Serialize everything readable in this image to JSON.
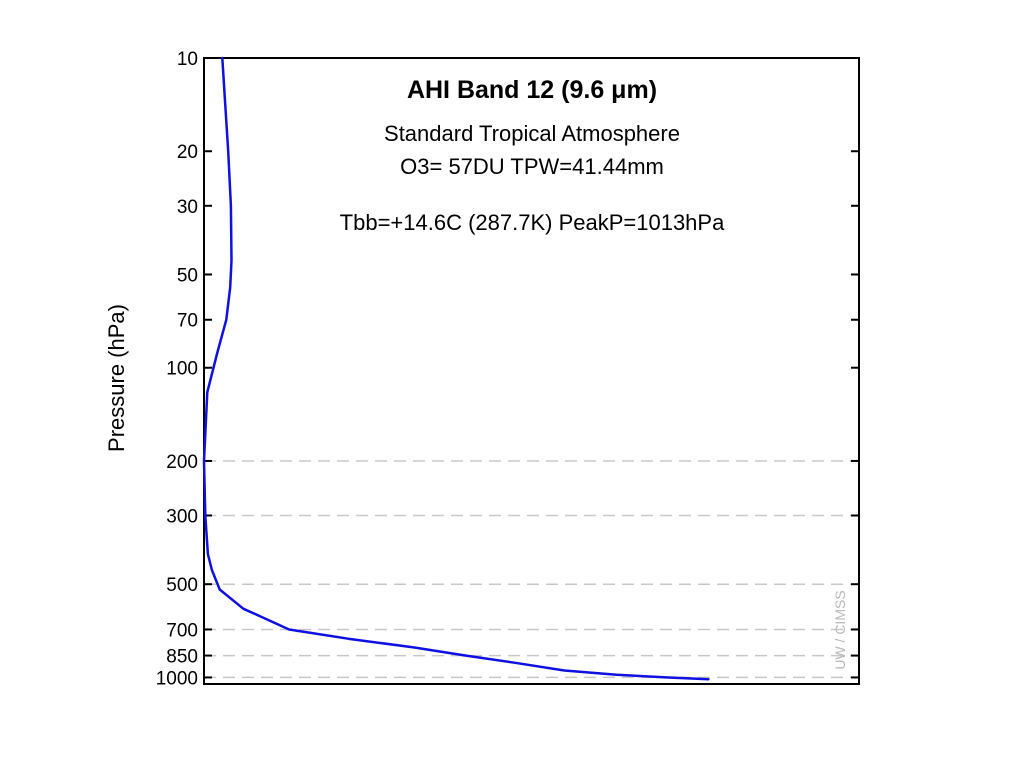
{
  "chart_data": {
    "type": "line",
    "title": "AHI Band 12 (9.6 μm)",
    "info_lines": [
      "Standard Tropical Atmosphere",
      "O3= 57DU  TPW=41.44mm",
      "Tbb=+14.6C  (287.7K)    PeakP=1013hPa"
    ],
    "ylabel": "Pressure (hPa)",
    "xlabel": "",
    "y_scale": "log",
    "y_reversed": true,
    "ylim": [
      10,
      1050
    ],
    "xlim": [
      0,
      1
    ],
    "y_ticks": [
      10,
      20,
      30,
      50,
      70,
      100,
      200,
      300,
      500,
      700,
      850,
      1000
    ],
    "y_tick_labels": [
      "10",
      "20",
      "30",
      "50",
      "70",
      "100",
      "200",
      "300",
      "500",
      "700",
      "850",
      "1000"
    ],
    "gridlines_y": [
      200,
      300,
      500,
      700,
      850,
      1000
    ],
    "grid_style": "dashed",
    "line_color": "#1010e0",
    "series": [
      {
        "x": [
          0.028,
          0.037,
          0.041,
          0.042,
          0.04,
          0.034,
          0.02,
          0.005,
          0.0,
          0.002,
          0.006,
          0.012,
          0.024,
          0.06,
          0.13,
          0.22,
          0.32,
          0.4,
          0.48,
          0.55,
          0.63,
          0.705,
          0.77
        ],
        "y": [
          10,
          20,
          30,
          45,
          55,
          70,
          90,
          120,
          200,
          300,
          400,
          450,
          520,
          600,
          700,
          750,
          800,
          850,
          900,
          950,
          980,
          1000,
          1013
        ]
      }
    ],
    "watermark": "UW / CIMSS"
  }
}
